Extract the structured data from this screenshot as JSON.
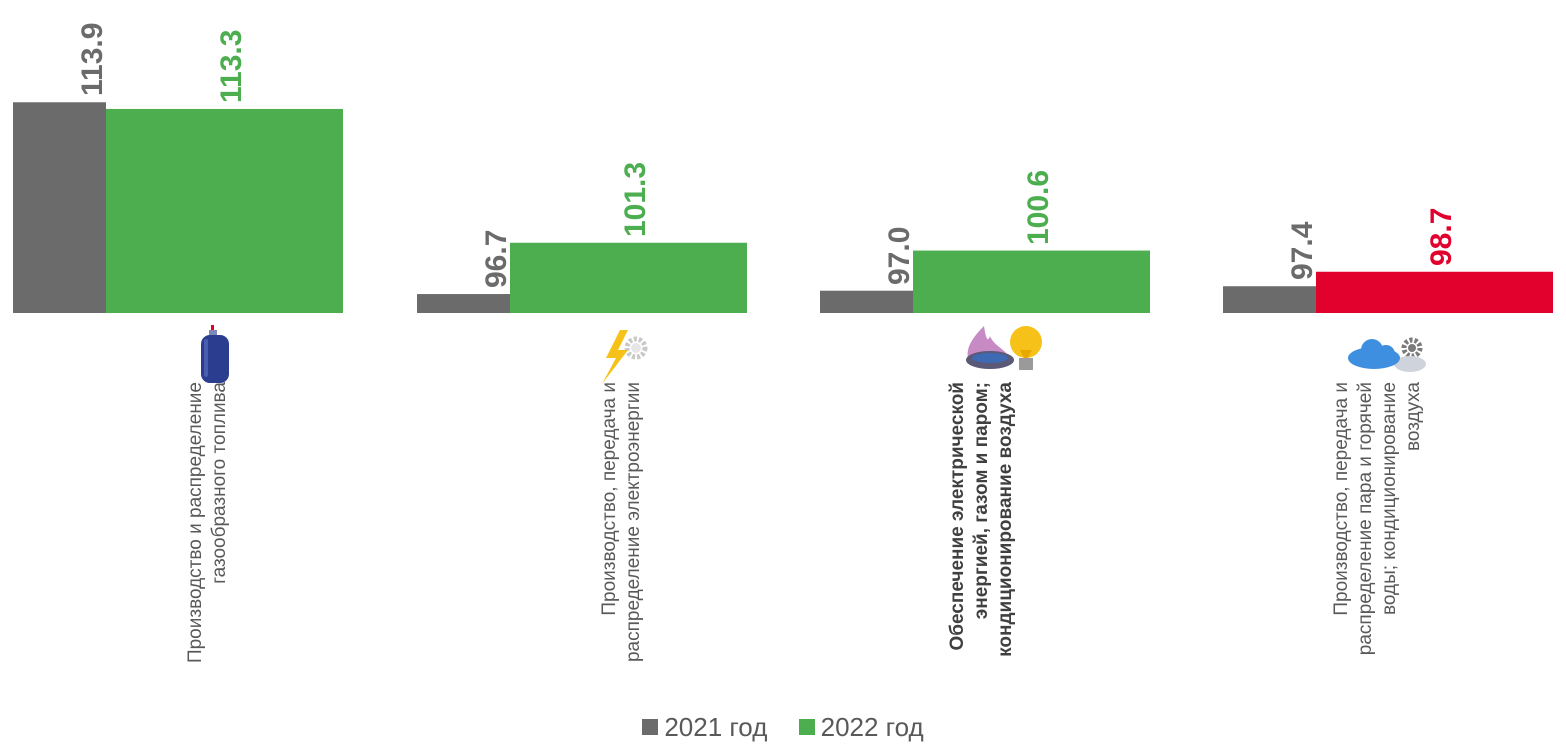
{
  "chart_data": {
    "type": "bar",
    "categories": [
      "Производство и распределение газообразного топлива",
      "Производство, передача и распределение электроэнергии",
      "Обеспечение электрической энергией, газом и паром; кондиционирование воздуха",
      "Производство, передача и распределение пара и горячей воды; кондиционирование воздуха"
    ],
    "series": [
      {
        "name": "2021 год",
        "values": [
          113.9,
          96.7,
          97.0,
          97.4
        ],
        "labels": [
          "113.9",
          "96.7",
          "97.0",
          "97.4"
        ]
      },
      {
        "name": "2022 год",
        "values": [
          113.3,
          101.3,
          100.6,
          98.7
        ],
        "labels": [
          "113.3",
          "101.3",
          "100.6",
          "98.7"
        ]
      }
    ],
    "baseline": 95,
    "value_max": 115,
    "legend_position": "bottom-center",
    "grid": false
  },
  "colors": {
    "series_2021": "#6b6b6b",
    "above_100": "#4cae4f",
    "below_100": "#e2002d",
    "label_2021": "#6b6b6b"
  },
  "icons": [
    "gas-cylinder-icon",
    "lightning-gear-icon",
    "gas-flame-bulb-icon",
    "cloud-gear-icon"
  ]
}
